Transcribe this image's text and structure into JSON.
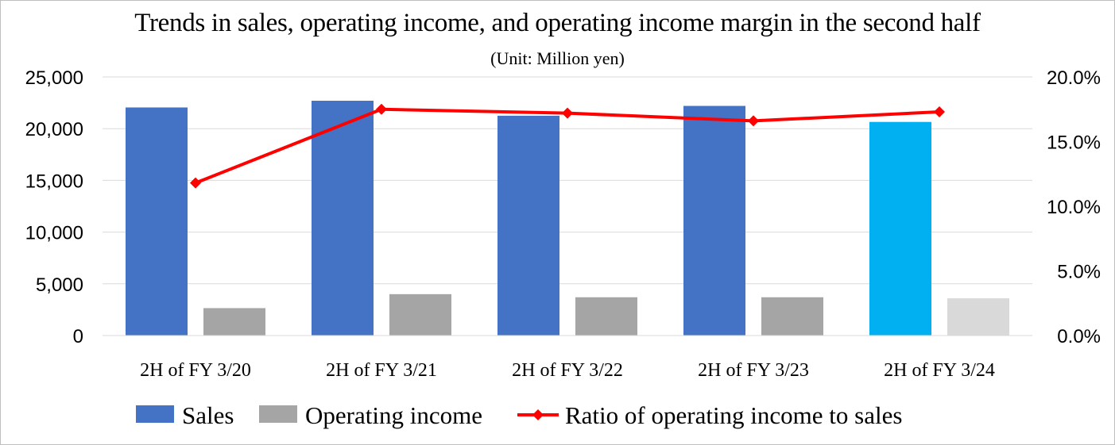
{
  "chart_data": {
    "type": "bar",
    "title": "Trends in sales, operating income, and operating income margin in the second half",
    "subtitle": "(Unit: Million yen)",
    "categories": [
      "2H of FY 3/20",
      "2H of FY 3/21",
      "2H of FY 3/22",
      "2H of FY 3/23",
      "2H of FY 3/24"
    ],
    "series": [
      {
        "name": "Sales",
        "type": "bar",
        "axis": "left",
        "color": "#4472C4",
        "highlight_color": "#00B0F0",
        "values": [
          22050,
          22700,
          21250,
          22200,
          20650
        ]
      },
      {
        "name": "Operating income",
        "type": "bar",
        "axis": "left",
        "color": "#A5A5A5",
        "highlight_color": "#D9D9D9",
        "values": [
          2650,
          4000,
          3700,
          3700,
          3600
        ]
      },
      {
        "name": "Ratio of operating income to sales",
        "type": "line",
        "axis": "right",
        "color": "#FF0000",
        "marker": "diamond",
        "values": [
          11.8,
          17.5,
          17.2,
          16.6,
          17.3
        ]
      }
    ],
    "highlight_category_index": 4,
    "y_left": {
      "range": [
        0,
        25000
      ],
      "ticks": [
        "0",
        "5,000",
        "10,000",
        "15,000",
        "20,000",
        "25,000"
      ]
    },
    "y_right": {
      "range": [
        0,
        20
      ],
      "ticks": [
        "0.0%",
        "5.0%",
        "10.0%",
        "15.0%",
        "20.0%"
      ]
    },
    "grid": true,
    "legend_position": "bottom"
  }
}
